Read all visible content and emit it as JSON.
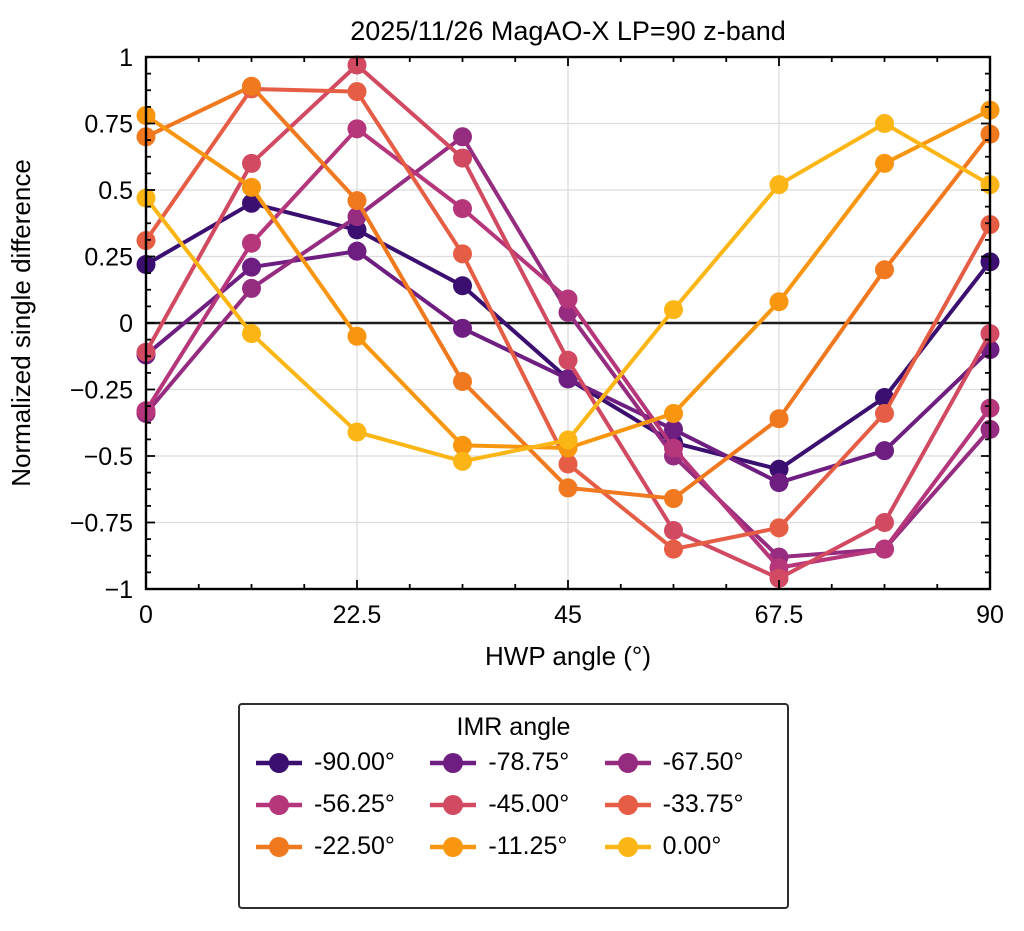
{
  "figure": {
    "title": "2025/11/26 MagAO-X LP=90 z-band",
    "xlabel": "HWP angle (°)",
    "ylabel": "Normalized single difference",
    "background": "#ffffff",
    "axis_color": "#000000",
    "grid_color": "#dcdcdc",
    "zero_line_color": "#1c1c1c"
  },
  "legend": {
    "title": "IMR angle",
    "border_color": "#2e2e2e",
    "position": "below"
  },
  "chart_data": {
    "type": "line",
    "title": "2025/11/26 MagAO-X LP=90 z-band",
    "xlabel": "HWP angle (°)",
    "ylabel": "Normalized single difference",
    "x": [
      0,
      11.25,
      22.5,
      33.75,
      45,
      56.25,
      67.5,
      78.75,
      90
    ],
    "xlim": [
      0,
      90
    ],
    "ylim": [
      -1,
      1
    ],
    "grid": true,
    "x_major_ticks": [
      {
        "v": 0,
        "label": "0"
      },
      {
        "v": 22.5,
        "label": "22.5"
      },
      {
        "v": 45,
        "label": "45"
      },
      {
        "v": 67.5,
        "label": "67.5"
      },
      {
        "v": 90,
        "label": "90"
      }
    ],
    "y_major_ticks": [
      {
        "v": 1,
        "label": "1"
      },
      {
        "v": 0.75,
        "label": "0.75"
      },
      {
        "v": 0.5,
        "label": "0.5"
      },
      {
        "v": 0.25,
        "label": "0.25"
      },
      {
        "v": 0,
        "label": "0"
      },
      {
        "v": -0.25,
        "label": "−0.25"
      },
      {
        "v": -0.5,
        "label": "−0.5"
      },
      {
        "v": -0.75,
        "label": "−0.75"
      },
      {
        "v": -1,
        "label": "−1"
      }
    ],
    "x_minor_step": 5.625,
    "y_minor_step": 0.0625,
    "series": [
      {
        "name": "-90.00°",
        "color": "#3b0f70",
        "values": [
          0.22,
          0.45,
          0.35,
          0.14,
          -0.21,
          -0.45,
          -0.55,
          -0.28,
          0.23
        ]
      },
      {
        "name": "-78.75°",
        "color": "#6e1e81",
        "values": [
          -0.12,
          0.21,
          0.27,
          -0.02,
          -0.21,
          -0.4,
          -0.6,
          -0.48,
          -0.1
        ]
      },
      {
        "name": "-67.50°",
        "color": "#952c80",
        "values": [
          -0.34,
          0.13,
          0.4,
          0.7,
          0.04,
          -0.5,
          -0.88,
          -0.85,
          -0.4
        ]
      },
      {
        "name": "-56.25°",
        "color": "#b5367a",
        "values": [
          -0.33,
          0.3,
          0.73,
          0.43,
          0.09,
          -0.47,
          -0.92,
          -0.85,
          -0.32
        ]
      },
      {
        "name": "-45.00°",
        "color": "#d24a61",
        "values": [
          -0.11,
          0.6,
          0.97,
          0.62,
          -0.14,
          -0.78,
          -0.96,
          -0.75,
          -0.04
        ]
      },
      {
        "name": "-33.75°",
        "color": "#e65d45",
        "values": [
          0.31,
          0.88,
          0.87,
          0.26,
          -0.53,
          -0.85,
          -0.77,
          -0.34,
          0.37
        ]
      },
      {
        "name": "-22.50°",
        "color": "#f0781e",
        "values": [
          0.7,
          0.89,
          0.46,
          -0.22,
          -0.62,
          -0.66,
          -0.36,
          0.2,
          0.71
        ]
      },
      {
        "name": "-11.25°",
        "color": "#f9960f",
        "values": [
          0.78,
          0.51,
          -0.05,
          -0.46,
          -0.47,
          -0.34,
          0.08,
          0.6,
          0.8
        ]
      },
      {
        "name": "0.00°",
        "color": "#fbb616",
        "values": [
          0.47,
          -0.04,
          -0.41,
          -0.52,
          -0.44,
          0.05,
          0.52,
          0.75,
          0.52
        ]
      }
    ]
  }
}
